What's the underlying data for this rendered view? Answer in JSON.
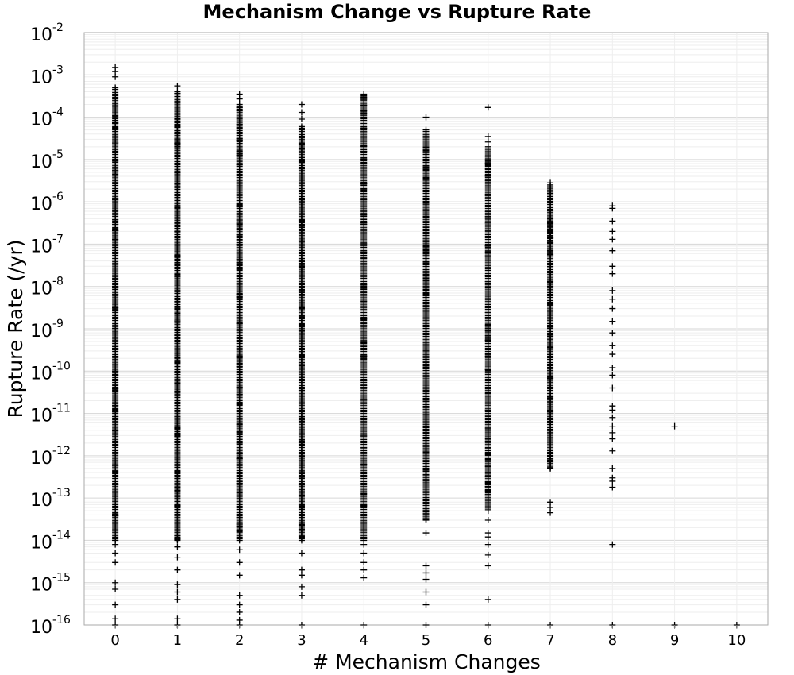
{
  "chart_data": {
    "type": "scatter",
    "title": "Mechanism Change vs Rupture Rate",
    "xlabel": "# Mechanism Changes",
    "ylabel": "Rupture Rate (/yr)",
    "xlim": [
      -0.5,
      10.5
    ],
    "ylim": [
      1e-16,
      0.01
    ],
    "yscale": "log",
    "grid": true,
    "marker": "+",
    "marker_color": "#000000",
    "x_ticks": [
      0,
      1,
      2,
      3,
      4,
      5,
      6,
      7,
      8,
      9,
      10
    ],
    "y_ticks": [
      {
        "base": "10",
        "exp": "-16",
        "value": 1e-16
      },
      {
        "base": "10",
        "exp": "-15",
        "value": 1e-15
      },
      {
        "base": "10",
        "exp": "-14",
        "value": 1e-14
      },
      {
        "base": "10",
        "exp": "-13",
        "value": 1e-13
      },
      {
        "base": "10",
        "exp": "-12",
        "value": 1e-12
      },
      {
        "base": "10",
        "exp": "-11",
        "value": 1e-11
      },
      {
        "base": "10",
        "exp": "-10",
        "value": 1e-10
      },
      {
        "base": "10",
        "exp": "-9",
        "value": 1e-09
      },
      {
        "base": "10",
        "exp": "-8",
        "value": 1e-08
      },
      {
        "base": "10",
        "exp": "-7",
        "value": 1e-07
      },
      {
        "base": "10",
        "exp": "-6",
        "value": 1e-06
      },
      {
        "base": "10",
        "exp": "-5",
        "value": 1e-05
      },
      {
        "base": "10",
        "exp": "-4",
        "value": 0.0001
      },
      {
        "base": "10",
        "exp": "-3",
        "value": 0.001
      },
      {
        "base": "10",
        "exp": "-2",
        "value": 0.01
      }
    ],
    "columns": [
      {
        "x": 0,
        "dense_min": 1e-14,
        "dense_max": 0.0005,
        "outliers": [
          0.0015,
          0.0012,
          0.0009,
          8e-15,
          5e-15,
          3e-15,
          1e-15,
          7e-16,
          3e-16,
          1.4e-16,
          1e-16
        ]
      },
      {
        "x": 1,
        "dense_min": 1e-14,
        "dense_max": 0.0004,
        "outliers": [
          0.00055,
          7e-15,
          4e-15,
          2e-15,
          9e-16,
          6e-16,
          4e-16,
          1.4e-16,
          1e-16
        ]
      },
      {
        "x": 2,
        "dense_min": 1e-14,
        "dense_max": 0.0002,
        "outliers": [
          0.00035,
          0.00027,
          6e-15,
          3e-15,
          1.5e-15,
          5e-16,
          3e-16,
          2e-16,
          1.3e-16,
          1e-16
        ]
      },
      {
        "x": 3,
        "dense_min": 1e-14,
        "dense_max": 6e-05,
        "outliers": [
          0.0002,
          0.00013,
          9e-05,
          5e-15,
          2e-15,
          1.5e-15,
          8e-16,
          5e-16,
          1e-16
        ]
      },
      {
        "x": 4,
        "dense_min": 1e-14,
        "dense_max": 0.00035,
        "outliers": [
          8e-15,
          5e-15,
          3e-15,
          2e-15,
          1.3e-15,
          1e-16
        ]
      },
      {
        "x": 5,
        "dense_min": 3e-14,
        "dense_max": 5e-05,
        "outliers": [
          0.0001,
          1.5e-14,
          2.5e-15,
          1.7e-15,
          1.2e-15,
          6e-16,
          3e-16,
          1e-16
        ]
      },
      {
        "x": 6,
        "dense_min": 5e-14,
        "dense_max": 2e-05,
        "outliers": [
          0.00017,
          3.5e-05,
          2.6e-05,
          1.2e-05,
          6e-06,
          4e-06,
          3e-14,
          1.5e-14,
          1.2e-14,
          8e-15,
          4.5e-15,
          2.5e-15,
          4e-16,
          1e-16
        ]
      },
      {
        "x": 7,
        "dense_min": 5e-13,
        "dense_max": 2.5e-06,
        "outliers": [
          2.8e-06,
          1.8e-06,
          8e-14,
          6e-14,
          4.5e-14,
          1e-16
        ]
      },
      {
        "x": 8,
        "dense_min": 0,
        "dense_max": 0,
        "outliers": [
          8e-07,
          7e-07,
          3.5e-07,
          2e-07,
          1.3e-07,
          7e-08,
          3e-08,
          2e-08,
          8e-09,
          5e-09,
          3e-09,
          1.5e-09,
          8e-10,
          4e-10,
          2.5e-10,
          1.2e-10,
          8e-11,
          4e-11,
          1.5e-11,
          1.2e-11,
          8e-12,
          5e-12,
          3.5e-12,
          2.5e-12,
          1.3e-12,
          5e-13,
          3e-13,
          2.5e-13,
          1.8e-13,
          8e-15,
          1e-16
        ]
      },
      {
        "x": 9,
        "dense_min": 0,
        "dense_max": 0,
        "outliers": [
          5e-12,
          1e-16
        ]
      },
      {
        "x": 10,
        "dense_min": 0,
        "dense_max": 0,
        "outliers": [
          1e-16
        ]
      }
    ]
  }
}
